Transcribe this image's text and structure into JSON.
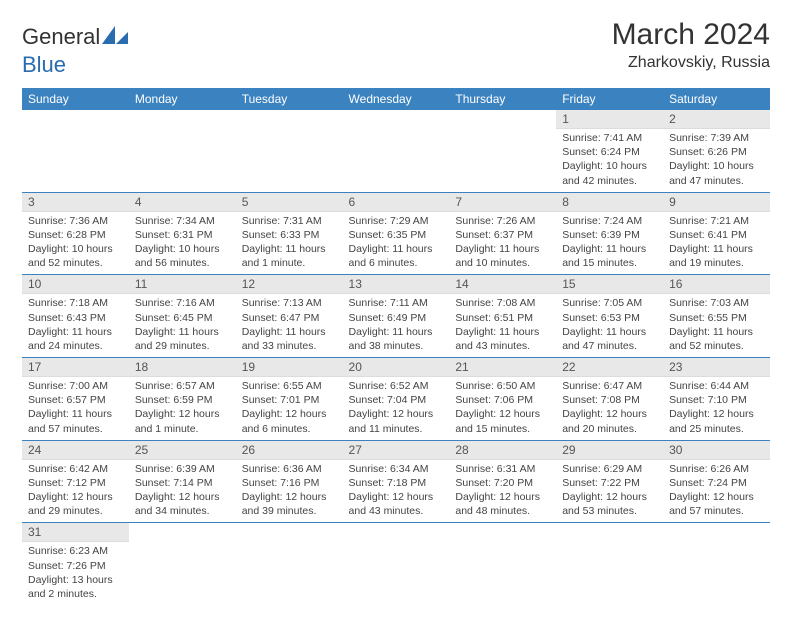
{
  "brand": {
    "part1": "General",
    "part2": "Blue"
  },
  "title": "March 2024",
  "location": "Zharkovskiy, Russia",
  "headers": [
    "Sunday",
    "Monday",
    "Tuesday",
    "Wednesday",
    "Thursday",
    "Friday",
    "Saturday"
  ],
  "colors": {
    "header_bg": "#3b83c0",
    "header_text": "#ffffff",
    "daynum_bg": "#e8e8e8",
    "border": "#3b83c0",
    "text": "#444444",
    "logo_blue": "#2a6cb0"
  },
  "weeks": [
    [
      null,
      null,
      null,
      null,
      null,
      {
        "n": "1",
        "sr": "Sunrise: 7:41 AM",
        "ss": "Sunset: 6:24 PM",
        "dl": "Daylight: 10 hours and 42 minutes."
      },
      {
        "n": "2",
        "sr": "Sunrise: 7:39 AM",
        "ss": "Sunset: 6:26 PM",
        "dl": "Daylight: 10 hours and 47 minutes."
      }
    ],
    [
      {
        "n": "3",
        "sr": "Sunrise: 7:36 AM",
        "ss": "Sunset: 6:28 PM",
        "dl": "Daylight: 10 hours and 52 minutes."
      },
      {
        "n": "4",
        "sr": "Sunrise: 7:34 AM",
        "ss": "Sunset: 6:31 PM",
        "dl": "Daylight: 10 hours and 56 minutes."
      },
      {
        "n": "5",
        "sr": "Sunrise: 7:31 AM",
        "ss": "Sunset: 6:33 PM",
        "dl": "Daylight: 11 hours and 1 minute."
      },
      {
        "n": "6",
        "sr": "Sunrise: 7:29 AM",
        "ss": "Sunset: 6:35 PM",
        "dl": "Daylight: 11 hours and 6 minutes."
      },
      {
        "n": "7",
        "sr": "Sunrise: 7:26 AM",
        "ss": "Sunset: 6:37 PM",
        "dl": "Daylight: 11 hours and 10 minutes."
      },
      {
        "n": "8",
        "sr": "Sunrise: 7:24 AM",
        "ss": "Sunset: 6:39 PM",
        "dl": "Daylight: 11 hours and 15 minutes."
      },
      {
        "n": "9",
        "sr": "Sunrise: 7:21 AM",
        "ss": "Sunset: 6:41 PM",
        "dl": "Daylight: 11 hours and 19 minutes."
      }
    ],
    [
      {
        "n": "10",
        "sr": "Sunrise: 7:18 AM",
        "ss": "Sunset: 6:43 PM",
        "dl": "Daylight: 11 hours and 24 minutes."
      },
      {
        "n": "11",
        "sr": "Sunrise: 7:16 AM",
        "ss": "Sunset: 6:45 PM",
        "dl": "Daylight: 11 hours and 29 minutes."
      },
      {
        "n": "12",
        "sr": "Sunrise: 7:13 AM",
        "ss": "Sunset: 6:47 PM",
        "dl": "Daylight: 11 hours and 33 minutes."
      },
      {
        "n": "13",
        "sr": "Sunrise: 7:11 AM",
        "ss": "Sunset: 6:49 PM",
        "dl": "Daylight: 11 hours and 38 minutes."
      },
      {
        "n": "14",
        "sr": "Sunrise: 7:08 AM",
        "ss": "Sunset: 6:51 PM",
        "dl": "Daylight: 11 hours and 43 minutes."
      },
      {
        "n": "15",
        "sr": "Sunrise: 7:05 AM",
        "ss": "Sunset: 6:53 PM",
        "dl": "Daylight: 11 hours and 47 minutes."
      },
      {
        "n": "16",
        "sr": "Sunrise: 7:03 AM",
        "ss": "Sunset: 6:55 PM",
        "dl": "Daylight: 11 hours and 52 minutes."
      }
    ],
    [
      {
        "n": "17",
        "sr": "Sunrise: 7:00 AM",
        "ss": "Sunset: 6:57 PM",
        "dl": "Daylight: 11 hours and 57 minutes."
      },
      {
        "n": "18",
        "sr": "Sunrise: 6:57 AM",
        "ss": "Sunset: 6:59 PM",
        "dl": "Daylight: 12 hours and 1 minute."
      },
      {
        "n": "19",
        "sr": "Sunrise: 6:55 AM",
        "ss": "Sunset: 7:01 PM",
        "dl": "Daylight: 12 hours and 6 minutes."
      },
      {
        "n": "20",
        "sr": "Sunrise: 6:52 AM",
        "ss": "Sunset: 7:04 PM",
        "dl": "Daylight: 12 hours and 11 minutes."
      },
      {
        "n": "21",
        "sr": "Sunrise: 6:50 AM",
        "ss": "Sunset: 7:06 PM",
        "dl": "Daylight: 12 hours and 15 minutes."
      },
      {
        "n": "22",
        "sr": "Sunrise: 6:47 AM",
        "ss": "Sunset: 7:08 PM",
        "dl": "Daylight: 12 hours and 20 minutes."
      },
      {
        "n": "23",
        "sr": "Sunrise: 6:44 AM",
        "ss": "Sunset: 7:10 PM",
        "dl": "Daylight: 12 hours and 25 minutes."
      }
    ],
    [
      {
        "n": "24",
        "sr": "Sunrise: 6:42 AM",
        "ss": "Sunset: 7:12 PM",
        "dl": "Daylight: 12 hours and 29 minutes."
      },
      {
        "n": "25",
        "sr": "Sunrise: 6:39 AM",
        "ss": "Sunset: 7:14 PM",
        "dl": "Daylight: 12 hours and 34 minutes."
      },
      {
        "n": "26",
        "sr": "Sunrise: 6:36 AM",
        "ss": "Sunset: 7:16 PM",
        "dl": "Daylight: 12 hours and 39 minutes."
      },
      {
        "n": "27",
        "sr": "Sunrise: 6:34 AM",
        "ss": "Sunset: 7:18 PM",
        "dl": "Daylight: 12 hours and 43 minutes."
      },
      {
        "n": "28",
        "sr": "Sunrise: 6:31 AM",
        "ss": "Sunset: 7:20 PM",
        "dl": "Daylight: 12 hours and 48 minutes."
      },
      {
        "n": "29",
        "sr": "Sunrise: 6:29 AM",
        "ss": "Sunset: 7:22 PM",
        "dl": "Daylight: 12 hours and 53 minutes."
      },
      {
        "n": "30",
        "sr": "Sunrise: 6:26 AM",
        "ss": "Sunset: 7:24 PM",
        "dl": "Daylight: 12 hours and 57 minutes."
      }
    ],
    [
      {
        "n": "31",
        "sr": "Sunrise: 6:23 AM",
        "ss": "Sunset: 7:26 PM",
        "dl": "Daylight: 13 hours and 2 minutes."
      },
      null,
      null,
      null,
      null,
      null,
      null
    ]
  ]
}
